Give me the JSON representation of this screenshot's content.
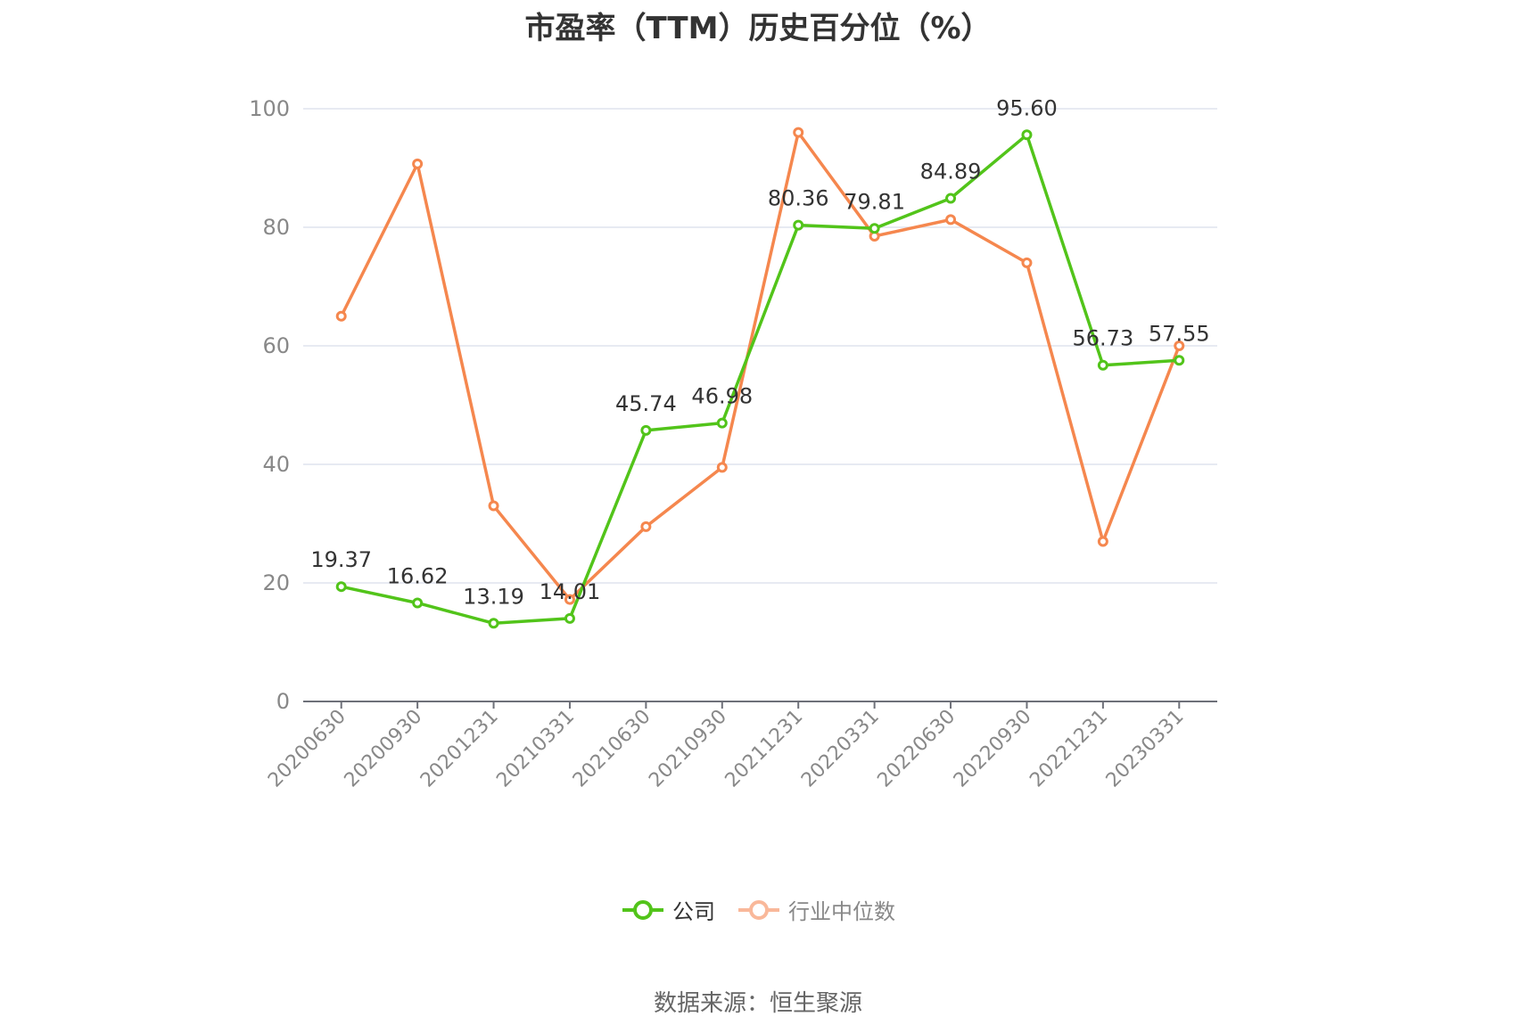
{
  "title": "市盈率（TTM）历史百分位（%）",
  "source": "数据来源：恒生聚源",
  "colors": {
    "company": "#52c41a",
    "industry": "#f5874e",
    "industry_legend": "#f9b89a",
    "grid": "#dfe3ee",
    "axis": "#6e7079"
  },
  "legend": {
    "company": "公司",
    "industry": "行业中位数"
  },
  "chart_data": {
    "type": "line",
    "title": "市盈率（TTM）历史百分位（%）",
    "categories": [
      "20200630",
      "20200930",
      "20201231",
      "20210331",
      "20210630",
      "20210930",
      "20211231",
      "20220331",
      "20220630",
      "20220930",
      "20221231",
      "20230331"
    ],
    "series": [
      {
        "name": "公司",
        "values": [
          19.37,
          16.62,
          13.19,
          14.01,
          45.74,
          46.98,
          80.36,
          79.81,
          84.89,
          95.6,
          56.73,
          57.55
        ],
        "show_labels": true
      },
      {
        "name": "行业中位数",
        "values": [
          65,
          90.7,
          33,
          17.2,
          29.5,
          39.5,
          96,
          78.5,
          81.3,
          74,
          27,
          60
        ],
        "show_labels": false
      }
    ],
    "ylim": [
      0,
      100
    ],
    "yticks": [
      0,
      20,
      40,
      60,
      80,
      100
    ],
    "grid": true,
    "legend_position": "bottom"
  }
}
